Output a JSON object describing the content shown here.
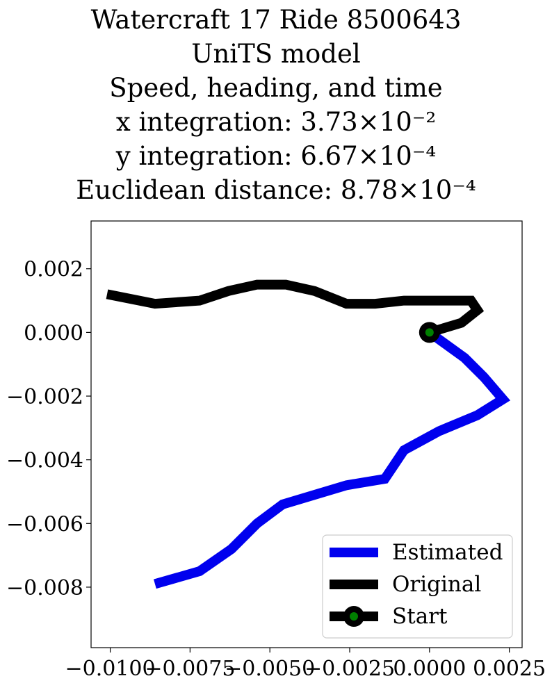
{
  "chart_data": {
    "type": "line",
    "title_lines": [
      "Watercraft 17 Ride 8500643",
      "UniTS model",
      "Speed, heading, and time",
      "x integration: 3.73×10⁻²",
      "y integration: 6.67×10⁻⁴",
      "Euclidean distance: 8.78×10⁻⁴"
    ],
    "xlabel": "",
    "ylabel": "",
    "xlim": [
      -0.0106,
      0.0029
    ],
    "ylim": [
      -0.0099,
      0.0035
    ],
    "xticks": [
      {
        "value": -0.01,
        "label": "−0.0100"
      },
      {
        "value": -0.0075,
        "label": "−0.0075"
      },
      {
        "value": -0.005,
        "label": "−0.0050"
      },
      {
        "value": -0.0025,
        "label": "−0.0025"
      },
      {
        "value": 0.0,
        "label": "0.0000"
      },
      {
        "value": 0.0025,
        "label": "0.0025"
      }
    ],
    "yticks": [
      {
        "value": 0.002,
        "label": "0.002"
      },
      {
        "value": 0.0,
        "label": "0.000"
      },
      {
        "value": -0.002,
        "label": "−0.002"
      },
      {
        "value": -0.004,
        "label": "−0.004"
      },
      {
        "value": -0.006,
        "label": "−0.006"
      },
      {
        "value": -0.008,
        "label": "−0.008"
      }
    ],
    "grid": false,
    "legend_position": "lower-right",
    "series": [
      {
        "name": "Estimated",
        "color": "#0000ee",
        "x": [
          0.0,
          0.0011,
          0.0017,
          0.0023,
          0.0015,
          0.0003,
          -0.0008,
          -0.0014,
          -0.0026,
          -0.0036,
          -0.0046,
          -0.0054,
          -0.0062,
          -0.0072,
          -0.0086
        ],
        "y": [
          0.0,
          -0.0008,
          -0.0014,
          -0.0021,
          -0.0026,
          -0.0031,
          -0.0037,
          -0.0046,
          -0.0048,
          -0.0051,
          -0.0054,
          -0.006,
          -0.0068,
          -0.0075,
          -0.0079
        ]
      },
      {
        "name": "Original",
        "color": "#000000",
        "x": [
          0.0,
          0.001,
          0.0015,
          0.0013,
          0.0,
          -0.0008,
          -0.0017,
          -0.0026,
          -0.0036,
          -0.0045,
          -0.0054,
          -0.0063,
          -0.0072,
          -0.0086,
          -0.0101
        ],
        "y": [
          0.0,
          0.0003,
          0.0007,
          0.001,
          0.001,
          0.001,
          0.0009,
          0.0009,
          0.0013,
          0.0015,
          0.0015,
          0.0013,
          0.001,
          0.0009,
          0.0012
        ]
      }
    ],
    "start": {
      "name": "Start",
      "x": 0.0,
      "y": 0.0,
      "outer_color": "#000000",
      "inner_color": "#008000"
    }
  }
}
